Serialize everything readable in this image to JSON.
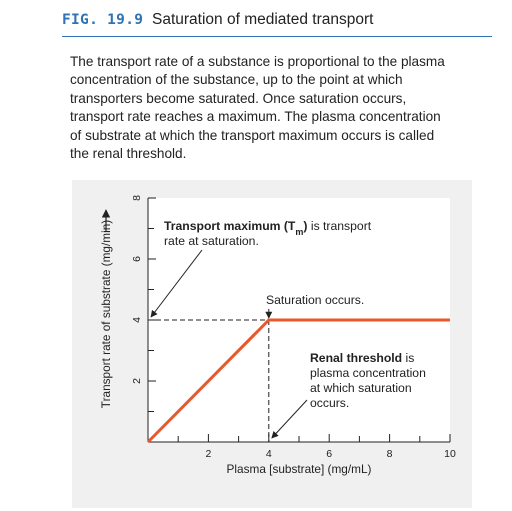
{
  "figure": {
    "label": "FIG. 19.9",
    "title": "Saturation of mediated transport"
  },
  "description_lines": [
    "The transport rate of a substance is proportional to the plasma",
    "concentration of the substance, up to the point at which",
    "transporters become saturated. Once saturation occurs,",
    "transport rate reaches a maximum. The plasma concentration",
    "of substrate at which the transport maximum occurs is called",
    "the renal threshold."
  ],
  "colors": {
    "accent": "#2f73b4",
    "series": "#e8582a",
    "panel": "#f0f0f0",
    "plot_bg": "#ffffff"
  },
  "chart_data": {
    "type": "line",
    "xlabel": "Plasma [substrate] (mg/mL)",
    "ylabel": "Transport rate of substrate (mg/min)",
    "xlim": [
      0,
      10
    ],
    "ylim": [
      0,
      8
    ],
    "xticks": [
      2,
      4,
      6,
      8,
      10
    ],
    "yticks": [
      2,
      4,
      6,
      8
    ],
    "grid": false,
    "series": [
      {
        "x": [
          0,
          4,
          10
        ],
        "y": [
          0,
          4,
          4
        ]
      }
    ],
    "reference_lines": [
      {
        "from": [
          0,
          4
        ],
        "to": [
          4,
          4
        ],
        "style": "dashed"
      },
      {
        "from": [
          4,
          4
        ],
        "to": [
          4,
          0
        ],
        "style": "dashed"
      }
    ],
    "annotations": [
      {
        "id": "transport-max",
        "lines": [
          "Transport maximum (T",
          "m",
          ") is transport",
          "rate at saturation."
        ],
        "points_to": [
          0,
          4
        ]
      },
      {
        "id": "saturation",
        "text": "Saturation occurs.",
        "points_to": [
          4,
          4
        ]
      },
      {
        "id": "renal-threshold",
        "bold": "Renal threshold",
        "rest": " is",
        "lines": [
          "plasma concentration",
          "at which saturation",
          "occurs."
        ],
        "points_to": [
          4,
          0
        ]
      }
    ]
  }
}
